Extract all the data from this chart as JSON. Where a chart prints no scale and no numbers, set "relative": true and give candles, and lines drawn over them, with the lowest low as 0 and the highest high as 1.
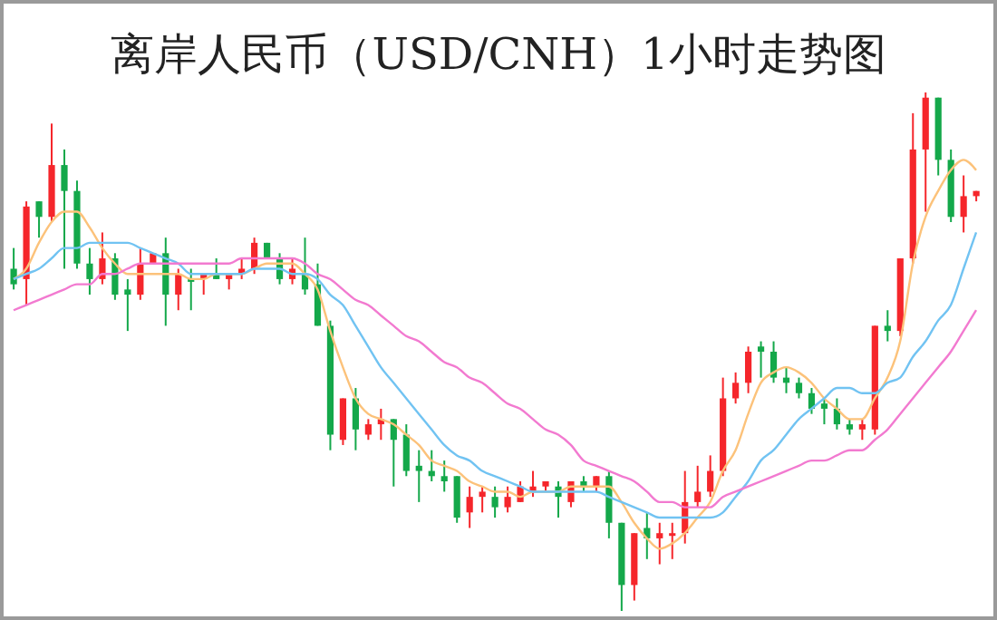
{
  "chart_data": {
    "type": "candlestick",
    "title": "离岸人民币（USD/CNH）1小时走势图",
    "relative": true,
    "grid": false,
    "legend": false,
    "categories": [
      null,
      null,
      null,
      null,
      null,
      null,
      null,
      null,
      null,
      null,
      null,
      null,
      null,
      null,
      null,
      null,
      null,
      null,
      null,
      null,
      null,
      null,
      null,
      null,
      null,
      null,
      null,
      null,
      null,
      null,
      null,
      null,
      null,
      null,
      null,
      null,
      null,
      null,
      null,
      null,
      null,
      null,
      null,
      null,
      null,
      null,
      null,
      null,
      null,
      null,
      null,
      null,
      null,
      null,
      null,
      null,
      null,
      null,
      null,
      null,
      null,
      null,
      null,
      null,
      null,
      null,
      null,
      null,
      null,
      null,
      null,
      null,
      null,
      null,
      null,
      null,
      null
    ],
    "ohlc": [
      [
        0.66,
        0.7,
        0.62,
        0.63
      ],
      [
        0.64,
        0.79,
        0.59,
        0.78
      ],
      [
        0.79,
        0.79,
        0.72,
        0.76
      ],
      [
        0.76,
        0.94,
        0.75,
        0.86
      ],
      [
        0.86,
        0.89,
        0.66,
        0.81
      ],
      [
        0.81,
        0.83,
        0.66,
        0.67
      ],
      [
        0.67,
        0.7,
        0.61,
        0.64
      ],
      [
        0.64,
        0.73,
        0.63,
        0.68
      ],
      [
        0.68,
        0.69,
        0.6,
        0.61
      ],
      [
        0.62,
        0.64,
        0.54,
        0.61
      ],
      [
        0.61,
        0.7,
        0.6,
        0.67
      ],
      [
        0.67,
        0.69,
        0.67,
        0.69
      ],
      [
        0.69,
        0.72,
        0.55,
        0.61
      ],
      [
        0.61,
        0.66,
        0.58,
        0.65
      ],
      [
        0.64,
        0.66,
        0.58,
        0.64
      ],
      [
        0.64,
        0.65,
        0.61,
        0.65
      ],
      [
        0.65,
        0.68,
        0.64,
        0.64
      ],
      [
        0.64,
        0.65,
        0.62,
        0.65
      ],
      [
        0.65,
        0.68,
        0.64,
        0.66
      ],
      [
        0.66,
        0.72,
        0.65,
        0.71
      ],
      [
        0.71,
        0.71,
        0.68,
        0.68
      ],
      [
        0.68,
        0.69,
        0.63,
        0.64
      ],
      [
        0.64,
        0.68,
        0.63,
        0.66
      ],
      [
        0.65,
        0.72,
        0.61,
        0.62
      ],
      [
        0.63,
        0.67,
        0.55,
        0.55
      ],
      [
        0.55,
        0.56,
        0.31,
        0.34
      ],
      [
        0.33,
        0.41,
        0.32,
        0.41
      ],
      [
        0.41,
        0.43,
        0.31,
        0.35
      ],
      [
        0.34,
        0.37,
        0.33,
        0.36
      ],
      [
        0.36,
        0.39,
        0.33,
        0.37
      ],
      [
        0.37,
        0.37,
        0.24,
        0.33
      ],
      [
        0.34,
        0.36,
        0.26,
        0.27
      ],
      [
        0.28,
        0.31,
        0.21,
        0.27
      ],
      [
        0.27,
        0.31,
        0.25,
        0.26
      ],
      [
        0.26,
        0.29,
        0.23,
        0.25
      ],
      [
        0.26,
        0.26,
        0.17,
        0.18
      ],
      [
        0.19,
        0.24,
        0.16,
        0.22
      ],
      [
        0.22,
        0.24,
        0.19,
        0.23
      ],
      [
        0.22,
        0.24,
        0.18,
        0.2
      ],
      [
        0.2,
        0.24,
        0.19,
        0.22
      ],
      [
        0.21,
        0.25,
        0.21,
        0.24
      ],
      [
        0.23,
        0.27,
        0.22,
        0.24
      ],
      [
        0.24,
        0.25,
        0.23,
        0.25
      ],
      [
        0.24,
        0.25,
        0.18,
        0.22
      ],
      [
        0.21,
        0.25,
        0.2,
        0.25
      ],
      [
        0.25,
        0.26,
        0.23,
        0.24
      ],
      [
        0.24,
        0.26,
        0.23,
        0.26
      ],
      [
        0.26,
        0.27,
        0.14,
        0.17
      ],
      [
        0.17,
        0.17,
        0,
        0.05
      ],
      [
        0.05,
        0.15,
        0.02,
        0.15
      ],
      [
        0.16,
        0.19,
        0.1,
        0.14
      ],
      [
        0.14,
        0.17,
        0.09,
        0.15
      ],
      [
        0.15,
        0.17,
        0.1,
        0.15
      ],
      [
        0.15,
        0.27,
        0.13,
        0.21
      ],
      [
        0.21,
        0.28,
        0.2,
        0.23
      ],
      [
        0.23,
        0.3,
        0.22,
        0.27
      ],
      [
        0.27,
        0.45,
        0.26,
        0.41
      ],
      [
        0.41,
        0.46,
        0.4,
        0.44
      ],
      [
        0.44,
        0.51,
        0.42,
        0.5
      ],
      [
        0.51,
        0.52,
        0.45,
        0.5
      ],
      [
        0.5,
        0.52,
        0.44,
        0.45
      ],
      [
        0.45,
        0.47,
        0.42,
        0.44
      ],
      [
        0.44,
        0.45,
        0.41,
        0.42
      ],
      [
        0.42,
        0.43,
        0.38,
        0.39
      ],
      [
        0.4,
        0.41,
        0.36,
        0.39
      ],
      [
        0.39,
        0.41,
        0.35,
        0.36
      ],
      [
        0.36,
        0.37,
        0.34,
        0.35
      ],
      [
        0.35,
        0.37,
        0.33,
        0.36
      ],
      [
        0.35,
        0.55,
        0.34,
        0.55
      ],
      [
        0.55,
        0.58,
        0.52,
        0.54
      ],
      [
        0.54,
        0.68,
        0.53,
        0.68
      ],
      [
        0.68,
        0.96,
        0.67,
        0.89
      ],
      [
        0.89,
        1,
        0.77,
        0.99
      ],
      [
        0.99,
        0.99,
        0.84,
        0.87
      ],
      [
        0.87,
        0.89,
        0.75,
        0.76
      ],
      [
        0.76,
        0.84,
        0.73,
        0.8
      ],
      [
        0.8,
        0.81,
        0.79,
        0.81
      ]
    ],
    "colors": [
      "#14a84a",
      "#f5262b",
      "#14a84a",
      "#f5262b",
      "#14a84a",
      "#14a84a",
      "#14a84a",
      "#f5262b",
      "#14a84a",
      "#14a84a",
      "#f5262b",
      "#f5262b",
      "#14a84a",
      "#f5262b",
      "#14a84a",
      "#f5262b",
      "#14a84a",
      "#f5262b",
      "#f5262b",
      "#f5262b",
      "#14a84a",
      "#14a84a",
      "#f5262b",
      "#14a84a",
      "#14a84a",
      "#14a84a",
      "#f5262b",
      "#14a84a",
      "#f5262b",
      "#f5262b",
      "#14a84a",
      "#14a84a",
      "#14a84a",
      "#14a84a",
      "#14a84a",
      "#14a84a",
      "#f5262b",
      "#f5262b",
      "#14a84a",
      "#f5262b",
      "#f5262b",
      "#f5262b",
      "#f5262b",
      "#14a84a",
      "#f5262b",
      "#14a84a",
      "#f5262b",
      "#14a84a",
      "#14a84a",
      "#f5262b",
      "#14a84a",
      "#f5262b",
      "#f5262b",
      "#f5262b",
      "#f5262b",
      "#f5262b",
      "#f5262b",
      "#f5262b",
      "#f5262b",
      "#14a84a",
      "#14a84a",
      "#14a84a",
      "#14a84a",
      "#14a84a",
      "#14a84a",
      "#14a84a",
      "#14a84a",
      "#f5262b",
      "#f5262b",
      "#14a84a",
      "#f5262b",
      "#f5262b",
      "#f5262b",
      "#14a84a",
      "#14a84a",
      "#f5262b",
      "#f5262b"
    ],
    "series": [
      {
        "type": "line",
        "color": "#fcc27a",
        "values": [
          0.64,
          0.66,
          0.71,
          0.75,
          0.77,
          0.77,
          0.74,
          0.7,
          0.67,
          0.65,
          0.65,
          0.65,
          0.65,
          0.65,
          0.64,
          0.64,
          0.65,
          0.65,
          0.65,
          0.66,
          0.67,
          0.67,
          0.67,
          0.65,
          0.62,
          0.54,
          0.47,
          0.41,
          0.38,
          0.37,
          0.36,
          0.34,
          0.32,
          0.29,
          0.28,
          0.27,
          0.25,
          0.24,
          0.23,
          0.23,
          0.22,
          0.23,
          0.23,
          0.23,
          0.24,
          0.24,
          0.24,
          0.24,
          0.21,
          0.17,
          0.14,
          0.12,
          0.13,
          0.15,
          0.18,
          0.21,
          0.27,
          0.31,
          0.38,
          0.44,
          0.46,
          0.47,
          0.46,
          0.44,
          0.41,
          0.39,
          0.37,
          0.37,
          0.41,
          0.45,
          0.52,
          0.67,
          0.76,
          0.81,
          0.85,
          0.87,
          0.85
        ]
      },
      {
        "type": "line",
        "color": "#71c3f2",
        "values": [
          0.64,
          0.65,
          0.66,
          0.68,
          0.7,
          0.7,
          0.71,
          0.71,
          0.71,
          0.71,
          0.7,
          0.69,
          0.68,
          0.67,
          0.65,
          0.65,
          0.65,
          0.65,
          0.65,
          0.66,
          0.66,
          0.66,
          0.65,
          0.65,
          0.64,
          0.61,
          0.59,
          0.55,
          0.51,
          0.47,
          0.44,
          0.41,
          0.38,
          0.35,
          0.32,
          0.3,
          0.29,
          0.27,
          0.26,
          0.25,
          0.24,
          0.23,
          0.23,
          0.23,
          0.23,
          0.23,
          0.23,
          0.22,
          0.21,
          0.2,
          0.19,
          0.18,
          0.18,
          0.18,
          0.18,
          0.18,
          0.19,
          0.22,
          0.25,
          0.29,
          0.31,
          0.34,
          0.37,
          0.39,
          0.41,
          0.43,
          0.43,
          0.42,
          0.42,
          0.44,
          0.45,
          0.49,
          0.52,
          0.56,
          0.59,
          0.66,
          0.73
        ]
      },
      {
        "type": "line",
        "color": "#f27ad0",
        "values": [
          0.58,
          0.59,
          0.6,
          0.61,
          0.62,
          0.63,
          0.63,
          0.65,
          0.65,
          0.66,
          0.67,
          0.67,
          0.67,
          0.67,
          0.67,
          0.67,
          0.67,
          0.67,
          0.68,
          0.68,
          0.68,
          0.68,
          0.68,
          0.67,
          0.65,
          0.64,
          0.62,
          0.6,
          0.59,
          0.57,
          0.55,
          0.53,
          0.52,
          0.5,
          0.48,
          0.47,
          0.45,
          0.44,
          0.42,
          0.4,
          0.39,
          0.37,
          0.35,
          0.34,
          0.32,
          0.29,
          0.28,
          0.27,
          0.26,
          0.25,
          0.23,
          0.21,
          0.21,
          0.2,
          0.2,
          0.2,
          0.22,
          0.23,
          0.24,
          0.25,
          0.26,
          0.27,
          0.28,
          0.29,
          0.29,
          0.3,
          0.31,
          0.31,
          0.33,
          0.35,
          0.38,
          0.41,
          0.44,
          0.47,
          0.5,
          0.54,
          0.58
        ]
      }
    ]
  }
}
